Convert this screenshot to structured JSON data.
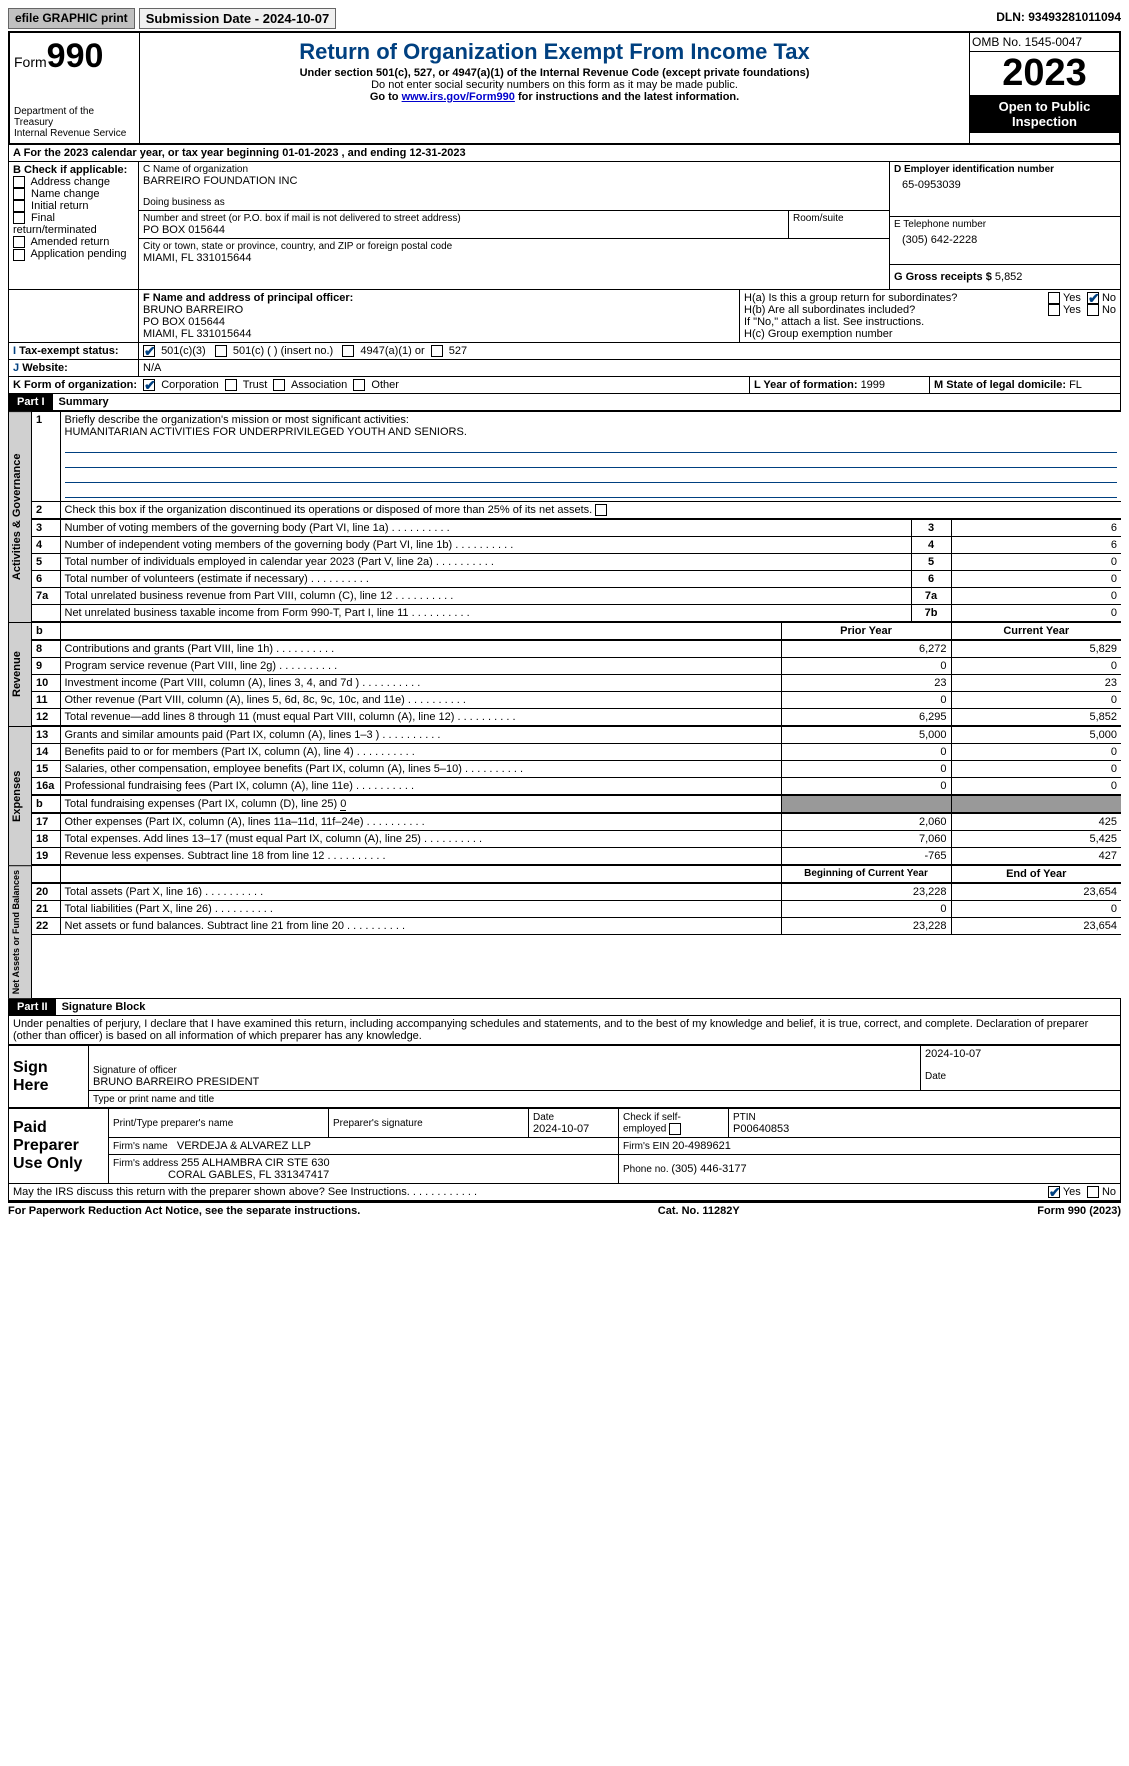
{
  "top": {
    "efile": "efile GRAPHIC print",
    "subdate_lbl": "Submission Date - ",
    "subdate": "2024-10-07",
    "dln_lbl": "DLN: ",
    "dln": "93493281011094"
  },
  "header": {
    "form_prefix": "Form",
    "form_no": "990",
    "dept": "Department of the Treasury",
    "irs": "Internal Revenue Service",
    "title": "Return of Organization Exempt From Income Tax",
    "sub1": "Under section 501(c), 527, or 4947(a)(1) of the Internal Revenue Code (except private foundations)",
    "sub2": "Do not enter social security numbers on this form as it may be made public.",
    "sub3_pre": "Go to ",
    "sub3_link": "www.irs.gov/Form990",
    "sub3_post": " for instructions and the latest information.",
    "omb": "OMB No. 1545-0047",
    "year": "2023",
    "open": "Open to Public Inspection"
  },
  "A": {
    "line": "For the 2023 calendar year, or tax year beginning 01-01-2023   , and ending 12-31-2023"
  },
  "B": {
    "hdr": "B Check if applicable:",
    "opts": [
      "Address change",
      "Name change",
      "Initial return",
      "Final return/terminated",
      "Amended return",
      "Application pending"
    ]
  },
  "C": {
    "name_lbl": "C Name of organization",
    "name": "BARREIRO FOUNDATION INC",
    "dba_lbl": "Doing business as",
    "addr_lbl": "Number and street (or P.O. box if mail is not delivered to street address)",
    "addr": "PO BOX 015644",
    "room_lbl": "Room/suite",
    "city_lbl": "City or town, state or province, country, and ZIP or foreign postal code",
    "city": "MIAMI, FL  331015644"
  },
  "D": {
    "lbl": "D Employer identification number",
    "val": "65-0953039"
  },
  "E": {
    "lbl": "E Telephone number",
    "val": "(305) 642-2228"
  },
  "G": {
    "lbl": "G Gross receipts $ ",
    "val": "5,852"
  },
  "F": {
    "lbl": "F  Name and address of principal officer:",
    "name": "BRUNO BARREIRO",
    "addr": "PO BOX 015644",
    "city": "MIAMI, FL  331015644"
  },
  "H": {
    "a": "H(a)  Is this a group return for subordinates?",
    "b": "H(b)  Are all subordinates included?",
    "bnote": "If \"No,\" attach a list. See instructions.",
    "c": "H(c)  Group exemption number",
    "yes": "Yes",
    "no": "No"
  },
  "I": {
    "lbl": "Tax-exempt status:",
    "o1": "501(c)(3)",
    "o2": "501(c) (  ) (insert no.)",
    "o3": "4947(a)(1) or",
    "o4": "527"
  },
  "J": {
    "lbl": "Website:",
    "val": "N/A"
  },
  "K": {
    "lbl": "K Form of organization:",
    "o1": "Corporation",
    "o2": "Trust",
    "o3": "Association",
    "o4": "Other"
  },
  "L": {
    "lbl": "L Year of formation: ",
    "val": "1999"
  },
  "M": {
    "lbl": "M State of legal domicile: ",
    "val": "FL"
  },
  "part1": {
    "bar": "Part I",
    "title": "Summary"
  },
  "s1": {
    "q1": "Briefly describe the organization's mission or most significant activities:",
    "mission": "HUMANITARIAN ACTIVITIES FOR UNDERPRIVILEGED YOUTH AND SENIORS.",
    "q2": "Check this box        if the organization discontinued its operations or disposed of more than 25% of its net assets.",
    "rows": [
      {
        "n": "3",
        "t": "Number of voting members of the governing body (Part VI, line 1a)",
        "c": "3",
        "v": "6"
      },
      {
        "n": "4",
        "t": "Number of independent voting members of the governing body (Part VI, line 1b)",
        "c": "4",
        "v": "6"
      },
      {
        "n": "5",
        "t": "Total number of individuals employed in calendar year 2023 (Part V, line 2a)",
        "c": "5",
        "v": "0"
      },
      {
        "n": "6",
        "t": "Total number of volunteers (estimate if necessary)",
        "c": "6",
        "v": "0"
      },
      {
        "n": "7a",
        "t": "Total unrelated business revenue from Part VIII, column (C), line 12",
        "c": "7a",
        "v": "0"
      },
      {
        "n": "",
        "t": "Net unrelated business taxable income from Form 990-T, Part I, line 11",
        "c": "7b",
        "v": "0"
      }
    ]
  },
  "colhdr": {
    "py": "Prior Year",
    "cy": "Current Year",
    "by": "Beginning of Current Year",
    "ey": "End of Year"
  },
  "rev": {
    "side": "Revenue",
    "rows": [
      {
        "n": "8",
        "t": "Contributions and grants (Part VIII, line 1h)",
        "p": "6,272",
        "c": "5,829"
      },
      {
        "n": "9",
        "t": "Program service revenue (Part VIII, line 2g)",
        "p": "0",
        "c": "0"
      },
      {
        "n": "10",
        "t": "Investment income (Part VIII, column (A), lines 3, 4, and 7d )",
        "p": "23",
        "c": "23"
      },
      {
        "n": "11",
        "t": "Other revenue (Part VIII, column (A), lines 5, 6d, 8c, 9c, 10c, and 11e)",
        "p": "0",
        "c": "0"
      },
      {
        "n": "12",
        "t": "Total revenue—add lines 8 through 11 (must equal Part VIII, column (A), line 12)",
        "p": "6,295",
        "c": "5,852"
      }
    ]
  },
  "exp": {
    "side": "Expenses",
    "rows": [
      {
        "n": "13",
        "t": "Grants and similar amounts paid (Part IX, column (A), lines 1–3 )",
        "p": "5,000",
        "c": "5,000"
      },
      {
        "n": "14",
        "t": "Benefits paid to or for members (Part IX, column (A), line 4)",
        "p": "0",
        "c": "0"
      },
      {
        "n": "15",
        "t": "Salaries, other compensation, employee benefits (Part IX, column (A), lines 5–10)",
        "p": "0",
        "c": "0"
      },
      {
        "n": "16a",
        "t": "Professional fundraising fees (Part IX, column (A), line 11e)",
        "p": "0",
        "c": "0"
      }
    ],
    "b": "Total fundraising expenses (Part IX, column (D), line 25) ",
    "bval": "0",
    "rows2": [
      {
        "n": "17",
        "t": "Other expenses (Part IX, column (A), lines 11a–11d, 11f–24e)",
        "p": "2,060",
        "c": "425"
      },
      {
        "n": "18",
        "t": "Total expenses. Add lines 13–17 (must equal Part IX, column (A), line 25)",
        "p": "7,060",
        "c": "5,425"
      },
      {
        "n": "19",
        "t": "Revenue less expenses. Subtract line 18 from line 12",
        "p": "-765",
        "c": "427"
      }
    ]
  },
  "net": {
    "side": "Net Assets or Fund Balances",
    "rows": [
      {
        "n": "20",
        "t": "Total assets (Part X, line 16)",
        "p": "23,228",
        "c": "23,654"
      },
      {
        "n": "21",
        "t": "Total liabilities (Part X, line 26)",
        "p": "0",
        "c": "0"
      },
      {
        "n": "22",
        "t": "Net assets or fund balances. Subtract line 21 from line 20",
        "p": "23,228",
        "c": "23,654"
      }
    ]
  },
  "part2": {
    "bar": "Part II",
    "title": "Signature Block"
  },
  "perjury": "Under penalties of perjury, I declare that I have examined this return, including accompanying schedules and statements, and to the best of my knowledge and belief, it is true, correct, and complete. Declaration of preparer (other than officer) is based on all information of which preparer has any knowledge.",
  "sign": {
    "here": "Sign Here",
    "date": "2024-10-07",
    "siglbl": "Signature of officer",
    "officer": "BRUNO BARREIRO  PRESIDENT",
    "typelbl": "Type or print name and title",
    "datelbl": "Date"
  },
  "paid": {
    "here": "Paid Preparer Use Only",
    "h1": "Print/Type preparer's name",
    "h2": "Preparer's signature",
    "h3": "Date",
    "h4": "Check        if self-employed",
    "h5": "PTIN",
    "date": "2024-10-07",
    "ptin": "P00640853",
    "firm_lbl": "Firm's name",
    "firm": "VERDEJA & ALVAREZ LLP",
    "ein_lbl": "Firm's EIN ",
    "ein": "20-4989621",
    "addr_lbl": "Firm's address ",
    "addr1": "255 ALHAMBRA CIR STE 630",
    "addr2": "CORAL GABLES, FL  331347417",
    "ph_lbl": "Phone no. ",
    "ph": "(305) 446-3177"
  },
  "foot": {
    "discuss": "May the IRS discuss this return with the preparer shown above? See Instructions.",
    "yes": "Yes",
    "no": "No",
    "pra": "For Paperwork Reduction Act Notice, see the separate instructions.",
    "cat": "Cat. No. 11282Y",
    "form": "Form 990 (2023)"
  },
  "side": {
    "ag": "Activities & Governance"
  }
}
